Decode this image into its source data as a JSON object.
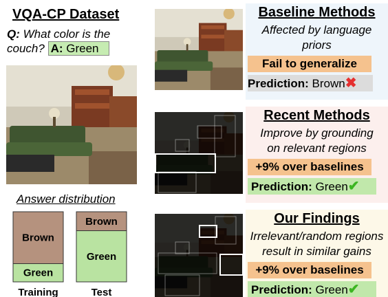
{
  "dataset_panel": {
    "title": "VQA-CP Dataset",
    "question_label": "Q:",
    "question_line1": "What color is the",
    "question_line2": "couch?",
    "answer_label": "A:",
    "answer": "Green",
    "distribution": {
      "title": "Answer distribution",
      "bars": [
        {
          "label": "Training",
          "segments": [
            {
              "name": "Green",
              "value": 26,
              "color": "#b9e3a1"
            },
            {
              "name": "Brown",
              "value": 74,
              "color": "#b5927e"
            }
          ]
        },
        {
          "label": "Test",
          "segments": [
            {
              "name": "Green",
              "value": 73,
              "color": "#b9e3a1"
            },
            {
              "name": "Brown",
              "value": 27,
              "color": "#b5927e"
            }
          ]
        }
      ]
    }
  },
  "panels": [
    {
      "title": "Baseline Methods",
      "description_line1": "Affected by language",
      "description_line2": "priors",
      "highlight": "Fail to generalize",
      "prediction_label": "Prediction:",
      "prediction": "Brown"
    },
    {
      "title": "Recent Methods",
      "description_line1": "Improve by grounding",
      "description_line2": "on relevant regions",
      "highlight": "+9% over baselines",
      "prediction_label": "Prediction:",
      "prediction": "Green"
    },
    {
      "title": "Our Findings",
      "description_line1": "Irrelevant/random regions",
      "description_line2": "result in similar gains",
      "highlight": "+9% over baselines",
      "prediction_label": "Prediction:",
      "prediction": "Green"
    }
  ]
}
